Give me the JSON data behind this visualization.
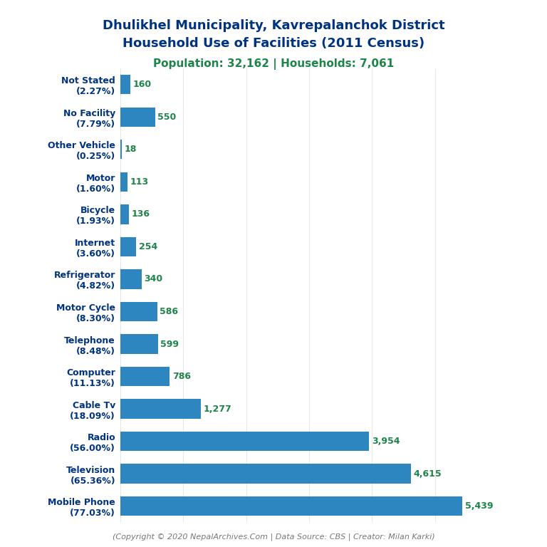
{
  "title_line1": "Dhulikhel Municipality, Kavrepalanchok District",
  "title_line2": "Household Use of Facilities (2011 Census)",
  "subtitle": "Population: 32,162 | Households: 7,061",
  "footer": "(Copyright © 2020 NepalArchives.Com | Data Source: CBS | Creator: Milan Karki)",
  "categories": [
    "Not Stated\n(2.27%)",
    "No Facility\n(7.79%)",
    "Other Vehicle\n(0.25%)",
    "Motor\n(1.60%)",
    "Bicycle\n(1.93%)",
    "Internet\n(3.60%)",
    "Refrigerator\n(4.82%)",
    "Motor Cycle\n(8.30%)",
    "Telephone\n(8.48%)",
    "Computer\n(11.13%)",
    "Cable Tv\n(18.09%)",
    "Radio\n(56.00%)",
    "Television\n(65.36%)",
    "Mobile Phone\n(77.03%)"
  ],
  "values": [
    160,
    550,
    18,
    113,
    136,
    254,
    340,
    586,
    599,
    786,
    1277,
    3954,
    4615,
    5439
  ],
  "bar_color": "#2e86c1",
  "value_color": "#1e8449",
  "title_color": "#003380",
  "subtitle_color": "#1e8449",
  "footer_color": "#777777",
  "background_color": "#ffffff",
  "xlim": [
    0,
    6000
  ]
}
